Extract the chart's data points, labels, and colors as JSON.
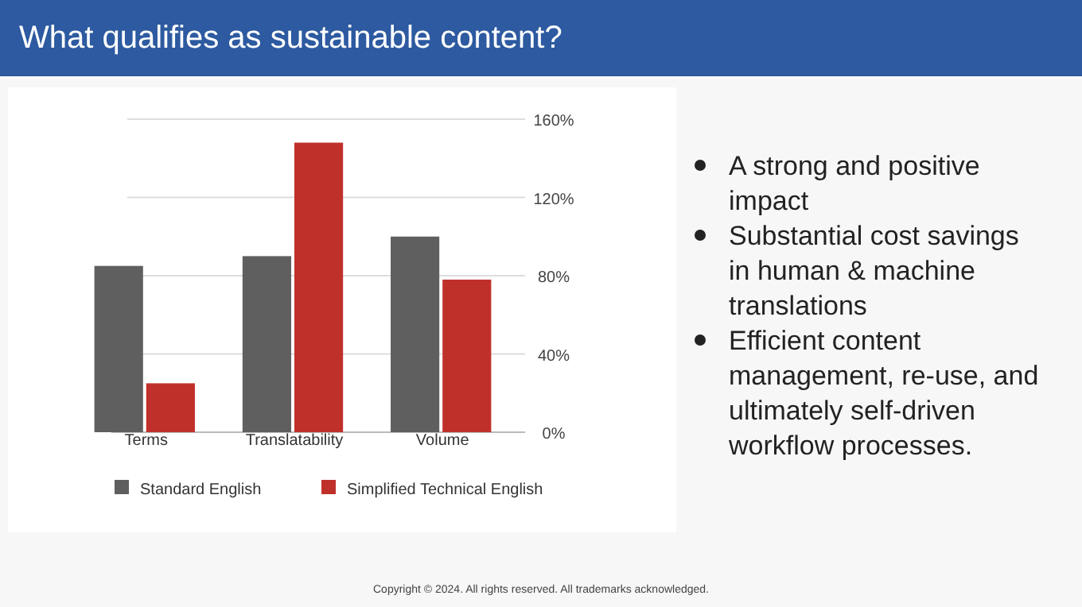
{
  "chart_data": {
    "type": "bar",
    "title": "What qualifies as sustainable content?",
    "categories": [
      "Terms",
      "Translatability",
      "Volume"
    ],
    "series": [
      {
        "name": "Standard English",
        "color": "#5f5f5f",
        "values": [
          85,
          90,
          100
        ]
      },
      {
        "name": "Simplified Technical English",
        "color": "#c0302a",
        "values": [
          25,
          148,
          78
        ]
      }
    ],
    "ylim": [
      0,
      160
    ],
    "yticks": [
      {
        "value": 0,
        "label": "0%"
      },
      {
        "value": 40,
        "label": "40%"
      },
      {
        "value": 80,
        "label": "80%"
      },
      {
        "value": 120,
        "label": "120%"
      },
      {
        "value": 160,
        "label": "160%"
      }
    ],
    "grid": "y",
    "legend": "bottom",
    "annotations": [
      "A strong and positive impact",
      "Substantial cost savings in human & machine translations",
      "Efficient content management, re-use, and ultimately self-driven workflow processes.",
      "Copyright © 2024. All rights reserved. All trademarks acknowledged."
    ]
  }
}
